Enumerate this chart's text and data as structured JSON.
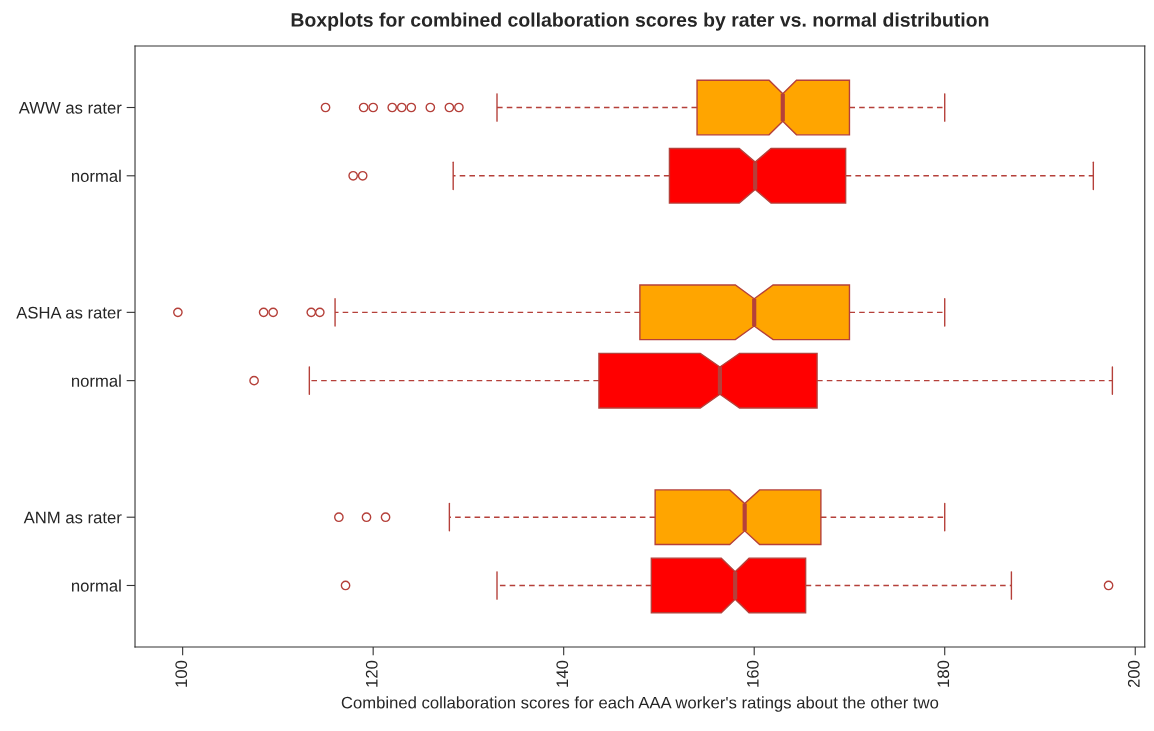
{
  "chart_data": {
    "type": "box",
    "orientation": "horizontal",
    "title": "Boxplots for combined collaboration scores by rater vs. normal distribution",
    "xlabel": "Combined collaboration scores for each AAA worker's ratings about the other two",
    "categories": [
      "AWW as rater",
      "normal",
      null,
      "ASHA as rater",
      "normal",
      null,
      "ANM as rater",
      "normal"
    ],
    "colors": [
      "#ffa500",
      "#ff0000",
      null,
      "#ffa500",
      "#ff0000",
      null,
      "#ffa500",
      "#ff0000"
    ],
    "boxes": [
      {
        "low": 133,
        "q1": 154,
        "median": 163,
        "q3": 170,
        "high": 180,
        "outliers": [
          115,
          119,
          120,
          122,
          123,
          124,
          126,
          128,
          129
        ]
      },
      {
        "low": 128.4,
        "q1": 151.1,
        "median": 160.1,
        "q3": 169.6,
        "high": 195.6,
        "outliers": [
          117.9,
          118.9
        ]
      },
      null,
      {
        "low": 116,
        "q1": 148,
        "median": 160,
        "q3": 170,
        "high": 180,
        "outliers": [
          99.5,
          108.5,
          109.5,
          113.5,
          114.4
        ]
      },
      {
        "low": 113.3,
        "q1": 143.7,
        "median": 156.4,
        "q3": 166.6,
        "high": 197.6,
        "outliers": [
          107.5
        ]
      },
      null,
      {
        "low": 128,
        "q1": 149.6,
        "median": 159,
        "q3": 167,
        "high": 180,
        "outliers": [
          116.4,
          119.3,
          121.3
        ]
      },
      {
        "low": 133,
        "q1": 149.2,
        "median": 158,
        "q3": 165.4,
        "high": 187,
        "outliers": [
          117.1,
          197.2
        ]
      }
    ],
    "xlim": [
      95,
      201
    ],
    "xticks": [
      100,
      120,
      140,
      160,
      180,
      200
    ],
    "marker": "circle",
    "grid": false
  }
}
